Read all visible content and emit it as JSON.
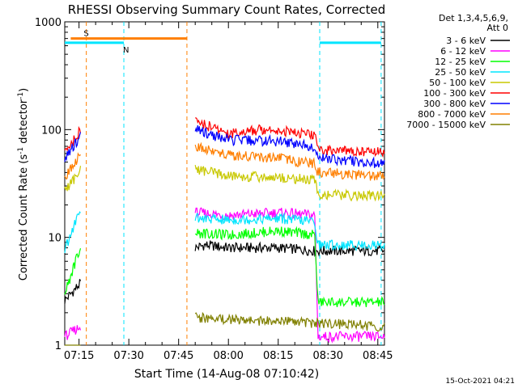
{
  "chart_data": {
    "type": "line",
    "title": "RHESSI Observing Summary Count Rates, Corrected",
    "xlabel": "Start Time (14-Aug-08 07:10:42)",
    "ylabel_main": "Corrected Count Rate (s",
    "ylabel_sup1": "-1",
    "ylabel_mid": " detector",
    "ylabel_sup2": "-1",
    "ylabel_end": ")",
    "footer": "15-Oct-2021 04:21",
    "y_scale": "log",
    "ylim": [
      1,
      1000
    ],
    "y_ticks": [
      1,
      10,
      100,
      1000
    ],
    "y_tick_labels": [
      "1",
      "10",
      "100",
      "1000"
    ],
    "x_ticks": [
      "07:15",
      "07:30",
      "07:45",
      "08:00",
      "08:15",
      "08:30",
      "08:45"
    ],
    "x_tick_minutes": [
      15,
      30,
      45,
      60,
      75,
      90,
      105
    ],
    "xlim_minutes": [
      10.7,
      107.0
    ],
    "legend": {
      "header": [
        "Det 1,3,4,5,6,9,",
        "Att 0"
      ],
      "position": "right"
    },
    "flags": [
      {
        "label": "S",
        "color": "#ff7f00",
        "start": 12.5,
        "end": 47.5,
        "level": 700
      },
      {
        "label": "N",
        "color": "#00e5ff",
        "start": 10.7,
        "end": 28.5,
        "level": 640
      },
      {
        "label": "",
        "color": "#00e5ff",
        "start": 87.5,
        "end": 106.0,
        "level": 640
      }
    ],
    "markers": [
      {
        "x": 17.2,
        "color": "#ff7f00"
      },
      {
        "x": 47.5,
        "color": "#ff7f00"
      },
      {
        "x": 28.5,
        "color": "#00e5ff"
      },
      {
        "x": 87.5,
        "color": "#00e5ff"
      },
      {
        "x": 106.0,
        "color": "#00e5ff"
      }
    ],
    "segments": [
      [
        10.7,
        15.6
      ],
      [
        50.0,
        107.0
      ]
    ],
    "series": [
      {
        "name": "3 - 6 keV",
        "color": "#000000",
        "values": [
          [
            10.7,
            2.6
          ],
          [
            15.6,
            3.8
          ],
          [
            50.0,
            8.0
          ],
          [
            53.0,
            8.5
          ],
          [
            60.0,
            8.0
          ],
          [
            75.0,
            8.0
          ],
          [
            86.0,
            7.5
          ]
        ]
      },
      {
        "name": "6 - 12 keV",
        "color": "#ff00ff",
        "values": [
          [
            10.7,
            1.2
          ],
          [
            15.6,
            1.5
          ],
          [
            50.0,
            17.0
          ],
          [
            60.0,
            16.0
          ],
          [
            75.0,
            17.0
          ],
          [
            86.0,
            16.0
          ],
          [
            87.0,
            1.2
          ],
          [
            106.0,
            1.2
          ]
        ]
      },
      {
        "name": "12 - 25 keV",
        "color": "#00ff00",
        "values": [
          [
            10.7,
            3.0
          ],
          [
            15.6,
            8.5
          ],
          [
            50.0,
            11.0
          ],
          [
            60.0,
            10.5
          ],
          [
            75.0,
            11.5
          ],
          [
            86.0,
            10.5
          ],
          [
            87.0,
            2.5
          ],
          [
            106.0,
            2.5
          ]
        ]
      },
      {
        "name": "25 - 50 keV",
        "color": "#00e5ff",
        "values": [
          [
            10.7,
            7.5
          ],
          [
            15.6,
            19.0
          ],
          [
            50.0,
            15.0
          ],
          [
            60.0,
            14.5
          ],
          [
            75.0,
            15.0
          ],
          [
            86.0,
            14.0
          ],
          [
            87.0,
            8.5
          ],
          [
            106.0,
            8.5
          ]
        ]
      },
      {
        "name": "50 - 100 keV",
        "color": "#c8c800",
        "values": [
          [
            10.7,
            27.0
          ],
          [
            15.6,
            42.0
          ],
          [
            50.0,
            43.0
          ],
          [
            60.0,
            37.0
          ],
          [
            75.0,
            36.0
          ],
          [
            86.0,
            34.0
          ],
          [
            87.0,
            25.0
          ],
          [
            106.0,
            24.0
          ]
        ]
      },
      {
        "name": "100 - 300 keV",
        "color": "#ff0000",
        "values": [
          [
            10.7,
            60.0
          ],
          [
            15.6,
            100.0
          ],
          [
            50.0,
            120.0
          ],
          [
            60.0,
            92.0
          ],
          [
            72.0,
            102.0
          ],
          [
            86.0,
            88.0
          ],
          [
            87.0,
            65.0
          ],
          [
            106.0,
            62.0
          ]
        ]
      },
      {
        "name": "300 - 800 keV",
        "color": "#0000ff",
        "values": [
          [
            10.7,
            52.0
          ],
          [
            15.6,
            90.0
          ],
          [
            50.0,
            100.0
          ],
          [
            60.0,
            80.0
          ],
          [
            75.0,
            78.0
          ],
          [
            86.0,
            70.0
          ],
          [
            87.0,
            55.0
          ],
          [
            106.0,
            48.0
          ]
        ]
      },
      {
        "name": "800 - 7000 keV",
        "color": "#ff7f00",
        "values": [
          [
            10.7,
            36.0
          ],
          [
            15.6,
            60.0
          ],
          [
            50.0,
            70.0
          ],
          [
            60.0,
            58.0
          ],
          [
            75.0,
            54.0
          ],
          [
            86.0,
            48.0
          ],
          [
            87.0,
            40.0
          ],
          [
            106.0,
            37.0
          ]
        ]
      },
      {
        "name": "7000 - 15000 keV",
        "color": "#808000",
        "values": [
          [
            10.7,
            1.0
          ],
          [
            15.6,
            1.0
          ],
          [
            50.0,
            1.8
          ],
          [
            106.0,
            1.5
          ]
        ]
      }
    ]
  }
}
